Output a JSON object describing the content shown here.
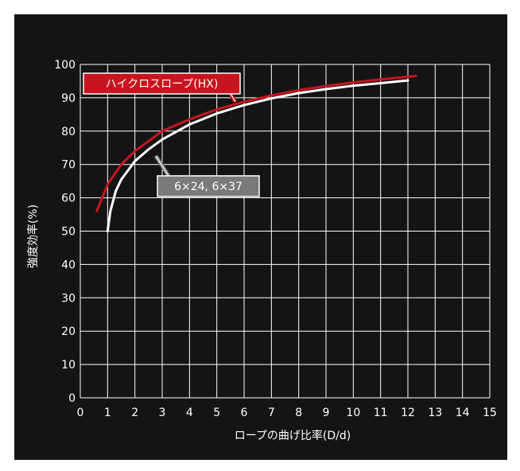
{
  "chart_data": {
    "type": "line",
    "xlabel": "ロープの曲げ比率(D/d)",
    "ylabel": "強度効率(%)",
    "xlim": [
      0,
      15
    ],
    "ylim": [
      0,
      100
    ],
    "xticks": [
      0,
      1,
      2,
      3,
      4,
      5,
      6,
      7,
      8,
      9,
      10,
      11,
      12,
      13,
      14,
      15
    ],
    "yticks": [
      0,
      10,
      20,
      30,
      40,
      50,
      60,
      70,
      80,
      90,
      100
    ],
    "grid": true,
    "legend": "none",
    "series": [
      {
        "name": "ハイクロスロープ(HX)",
        "color": "#c8141e",
        "label_bg": "#c8141e",
        "label_border": "#ffffff",
        "x": [
          0.6,
          0.8,
          1,
          1.5,
          2,
          2.5,
          3,
          4,
          5,
          6,
          7,
          8,
          9,
          10,
          11,
          12,
          12.3
        ],
        "y": [
          56,
          60,
          64,
          70,
          74,
          77,
          80,
          83.5,
          86.5,
          88.8,
          90.7,
          92.3,
          93.5,
          94.6,
          95.5,
          96.3,
          96.6
        ]
      },
      {
        "name": "6×24, 6×37",
        "color": "#ffffff",
        "label_bg": "#7a7a7a",
        "label_border": "#ffffff",
        "x": [
          1,
          1.1,
          1.3,
          1.5,
          2,
          2.5,
          3,
          4,
          5,
          6,
          7,
          8,
          9,
          10,
          11,
          12
        ],
        "y": [
          50,
          56,
          62,
          65.5,
          71,
          74.5,
          77.5,
          82,
          85.3,
          87.8,
          89.8,
          91.4,
          92.6,
          93.6,
          94.4,
          95.2
        ]
      }
    ]
  }
}
